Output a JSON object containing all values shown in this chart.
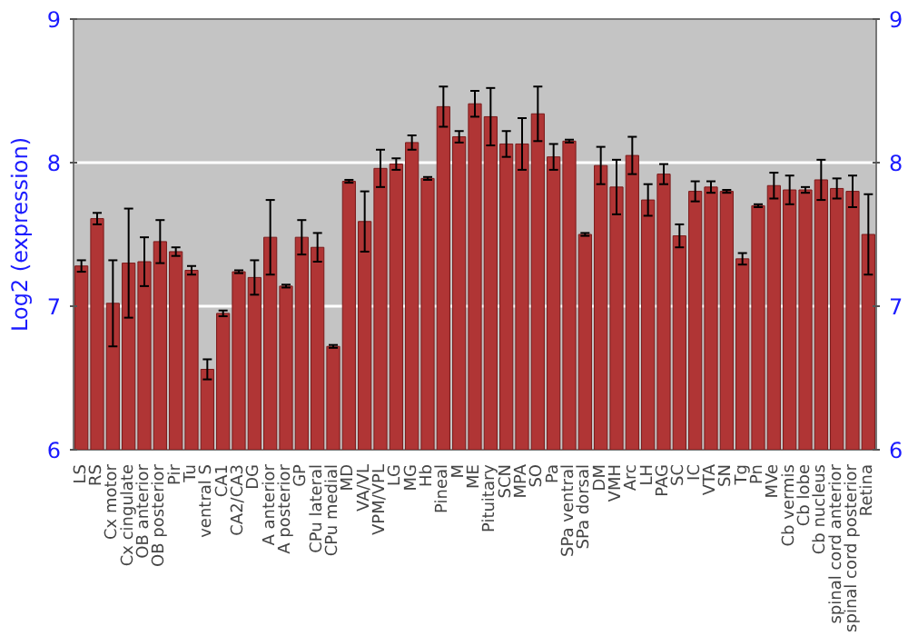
{
  "chart_data": {
    "type": "bar",
    "ylabel": "Log2 (expression)",
    "categories": [
      "LS",
      "RS",
      "Cx motor",
      "Cx cingulate",
      "OB anterior",
      "OB posterior",
      "Pir",
      "Tu",
      "ventral S",
      "CA1",
      "CA2/CA3",
      "DG",
      "A anterior",
      "A posterior",
      "GP",
      "CPu lateral",
      "CPu medial",
      "MD",
      "VA/VL",
      "VPM/VPL",
      "LG",
      "MG",
      "Hb",
      "Pineal",
      "M",
      "ME",
      "Pituitary",
      "SCN",
      "MPA",
      "SO",
      "Pa",
      "SPa ventral",
      "SPa dorsal",
      "DM",
      "VMH",
      "Arc",
      "LH",
      "PAG",
      "SC",
      "IC",
      "VTA",
      "SN",
      "Tg",
      "Pn",
      "MVe",
      "Cb vermis",
      "Cb lobe",
      "Cb nucleus",
      "spinal cord anterior",
      "spinal cord posterior",
      "Retina"
    ],
    "values": [
      7.28,
      7.61,
      7.02,
      7.3,
      7.31,
      7.45,
      7.38,
      7.25,
      6.56,
      6.95,
      7.24,
      7.2,
      7.48,
      7.14,
      7.48,
      7.41,
      6.72,
      7.87,
      7.59,
      7.96,
      7.99,
      8.14,
      7.89,
      8.39,
      8.18,
      8.41,
      8.32,
      8.13,
      8.13,
      8.34,
      8.04,
      8.15,
      7.5,
      7.98,
      7.83,
      8.05,
      7.74,
      7.92,
      7.49,
      7.8,
      7.83,
      7.8,
      7.33,
      7.7,
      7.84,
      7.81,
      7.81,
      7.88,
      7.82,
      7.8,
      7.5
    ],
    "errors": [
      0.04,
      0.04,
      0.3,
      0.38,
      0.17,
      0.15,
      0.03,
      0.03,
      0.07,
      0.02,
      0.01,
      0.12,
      0.26,
      0.01,
      0.12,
      0.1,
      0.01,
      0.01,
      0.21,
      0.13,
      0.04,
      0.05,
      0.01,
      0.14,
      0.04,
      0.09,
      0.2,
      0.09,
      0.18,
      0.19,
      0.09,
      0.01,
      0.01,
      0.13,
      0.19,
      0.13,
      0.11,
      0.07,
      0.08,
      0.07,
      0.04,
      0.01,
      0.04,
      0.01,
      0.09,
      0.1,
      0.02,
      0.14,
      0.07,
      0.11,
      0.28
    ],
    "color": "#b03535",
    "ylim": [
      6,
      9
    ],
    "yticks": [
      6,
      7,
      8,
      9
    ],
    "y2lim": [
      6,
      9
    ],
    "y2ticks": [
      6,
      7,
      8,
      9
    ],
    "grid": "y"
  }
}
